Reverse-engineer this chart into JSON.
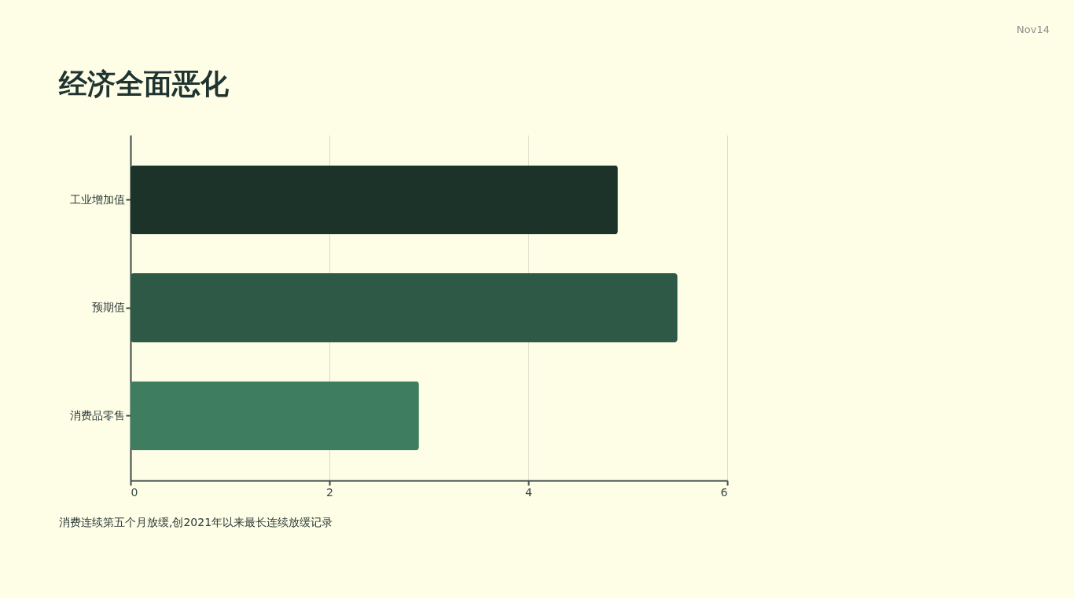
{
  "chart_data": {
    "type": "bar",
    "orientation": "horizontal",
    "title": "经济全面恶化",
    "categories": [
      "工业增加值",
      "预期值",
      "消费品零售"
    ],
    "values": [
      4.9,
      5.5,
      2.9
    ],
    "colors": [
      "#1b3329",
      "#2d5946",
      "#3e7d60"
    ],
    "xlim": [
      0,
      6
    ],
    "xticks": [
      0,
      2,
      4,
      6
    ],
    "grid": "x",
    "legend": false,
    "annotations": [
      "Nov14",
      "消费连续第五个月放缓,创2021年以来最长连续放缓记录"
    ]
  }
}
